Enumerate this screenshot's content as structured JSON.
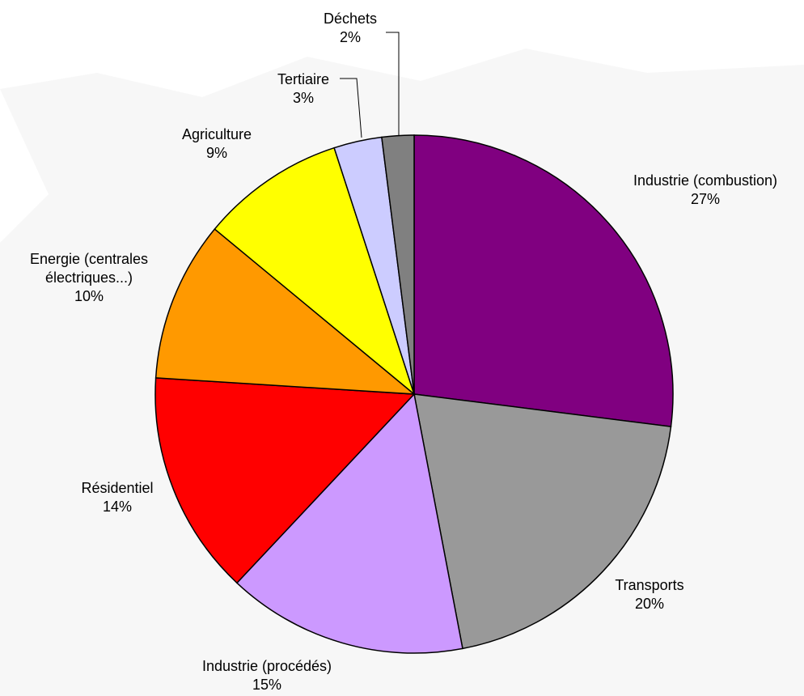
{
  "chart_data": {
    "type": "pie",
    "categories": [
      "Industrie (combustion)",
      "Transports",
      "Industrie (procédés)",
      "Résidentiel",
      "Energie (centrales électriques...)",
      "Agriculture",
      "Tertiaire",
      "Déchets"
    ],
    "values": [
      27,
      20,
      15,
      14,
      10,
      9,
      3,
      2
    ],
    "value_labels": [
      "27%",
      "20%",
      "15%",
      "14%",
      "10%",
      "9%",
      "3%",
      "2%"
    ],
    "colors": [
      "#800080",
      "#999999",
      "#cc99ff",
      "#ff0000",
      "#ff9900",
      "#ffff00",
      "#ccccff",
      "#808080"
    ]
  }
}
